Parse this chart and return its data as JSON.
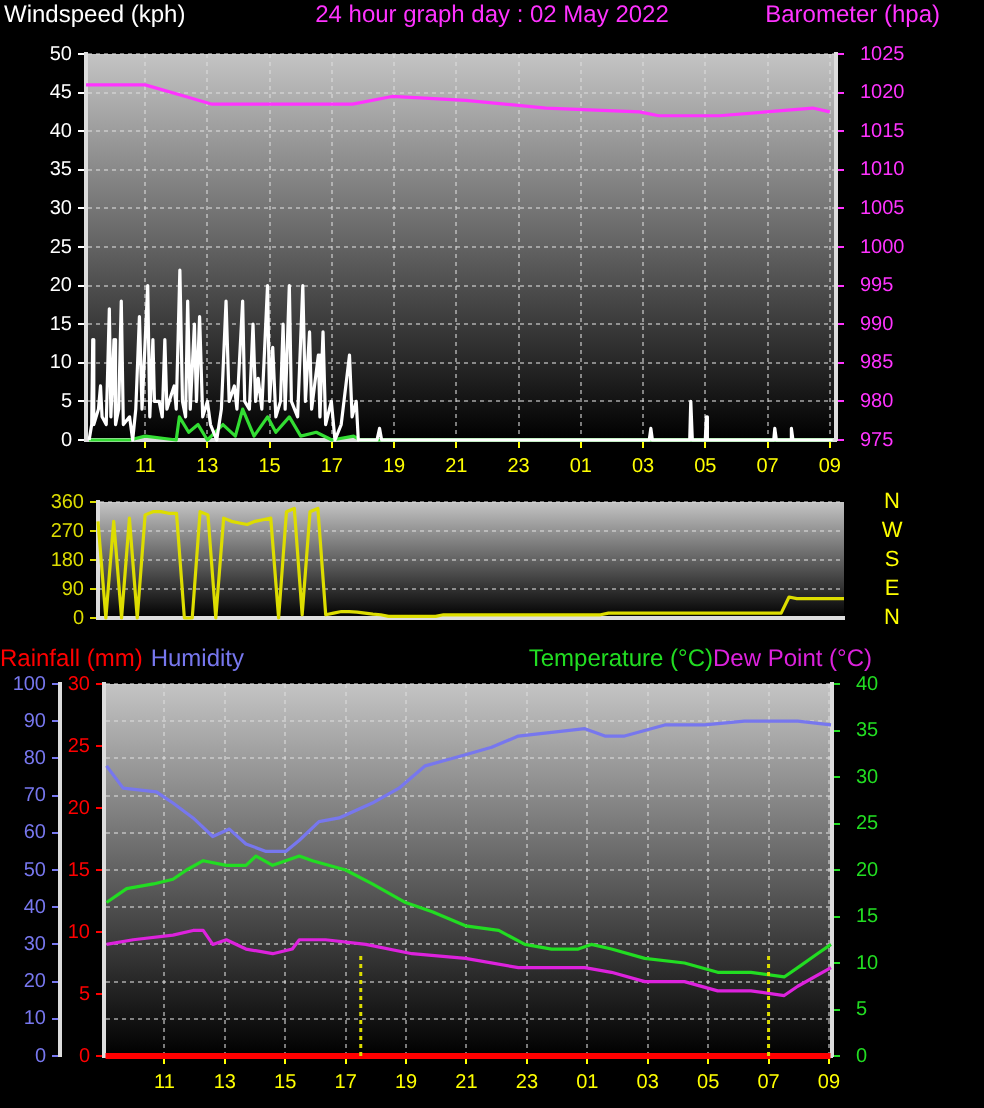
{
  "chart_data": [
    {
      "type": "line",
      "title": "24 hour graph day : 02 May 2022",
      "ylabel": "Windspeed (kph)",
      "y2label": "Barometer (hpa)",
      "xlim": [
        "2022-05-02T09:06",
        "2022-05-03T09:12"
      ],
      "xticks": [
        {
          "value": "2022-05-02T11:00",
          "label": "11"
        },
        {
          "value": "2022-05-02T13:00",
          "label": "13"
        },
        {
          "value": "2022-05-02T15:00",
          "label": "15"
        },
        {
          "value": "2022-05-02T17:00",
          "label": "17"
        },
        {
          "value": "2022-05-02T19:00",
          "label": "19"
        },
        {
          "value": "2022-05-02T21:00",
          "label": "21"
        },
        {
          "value": "2022-05-02T23:00",
          "label": "23"
        },
        {
          "value": "2022-05-03T01:00",
          "label": "01"
        },
        {
          "value": "2022-05-03T03:00",
          "label": "03"
        },
        {
          "value": "2022-05-03T05:00",
          "label": "05"
        },
        {
          "value": "2022-05-03T07:00",
          "label": "07"
        },
        {
          "value": "2022-05-03T09:00",
          "label": "09"
        }
      ],
      "ylim": [
        0,
        50
      ],
      "yticks": [
        0,
        5,
        10,
        15,
        20,
        25,
        30,
        35,
        40,
        45,
        50
      ],
      "y2lim": [
        975,
        1025
      ],
      "y2ticks": [
        975,
        980,
        985,
        990,
        995,
        1000,
        1005,
        1010,
        1015,
        1020,
        1025
      ],
      "grid": true,
      "marker": "none",
      "line_style": "solid",
      "series": [
        {
          "color": "#ffffff",
          "x": [
            "2022-05-02T09:12",
            "2022-05-02T09:17",
            "2022-05-02T09:19",
            "2022-05-02T09:21",
            "2022-05-02T09:30",
            "2022-05-02T09:34",
            "2022-05-02T09:37",
            "2022-05-02T09:45",
            "2022-05-02T09:51",
            "2022-05-02T09:54",
            "2022-05-02T10:00",
            "2022-05-02T10:03",
            "2022-05-02T10:09",
            "2022-05-02T10:14",
            "2022-05-02T10:18",
            "2022-05-02T10:30",
            "2022-05-02T10:36",
            "2022-05-02T10:42",
            "2022-05-02T10:49",
            "2022-05-02T10:54",
            "2022-05-02T11:05",
            "2022-05-02T11:09",
            "2022-05-02T11:15",
            "2022-05-02T11:18",
            "2022-05-02T11:27",
            "2022-05-02T11:33",
            "2022-05-02T11:38",
            "2022-05-02T11:42",
            "2022-05-02T11:51",
            "2022-05-02T11:56",
            "2022-05-02T12:00",
            "2022-05-02T12:07",
            "2022-05-02T12:12",
            "2022-05-02T12:18",
            "2022-05-02T12:22",
            "2022-05-02T12:27",
            "2022-05-02T12:35",
            "2022-05-02T12:39",
            "2022-05-02T12:45",
            "2022-05-02T12:51",
            "2022-05-02T13:00",
            "2022-05-02T13:06",
            "2022-05-02T13:18",
            "2022-05-02T13:27",
            "2022-05-02T13:36",
            "2022-05-02T13:42",
            "2022-05-02T13:52",
            "2022-05-02T13:57",
            "2022-05-02T14:08",
            "2022-05-02T14:12",
            "2022-05-02T14:21",
            "2022-05-02T14:28",
            "2022-05-02T14:33",
            "2022-05-02T14:38",
            "2022-05-02T14:45",
            "2022-05-02T14:56",
            "2022-05-02T15:00",
            "2022-05-02T15:06",
            "2022-05-02T15:12",
            "2022-05-02T15:21",
            "2022-05-02T15:26",
            "2022-05-02T15:30",
            "2022-05-02T15:38",
            "2022-05-02T15:42",
            "2022-05-02T15:54",
            "2022-05-02T16:04",
            "2022-05-02T16:09",
            "2022-05-02T16:17",
            "2022-05-02T16:21",
            "2022-05-02T16:34",
            "2022-05-02T16:37",
            "2022-05-02T16:43",
            "2022-05-02T16:48",
            "2022-05-02T16:59",
            "2022-05-02T17:06",
            "2022-05-02T17:18",
            "2022-05-02T17:34",
            "2022-05-02T17:39",
            "2022-05-02T17:47",
            "2022-05-02T17:51",
            "2022-05-02T18:27",
            "2022-05-02T18:32",
            "2022-05-02T18:36",
            "2022-05-03T03:12",
            "2022-05-03T03:15",
            "2022-05-03T03:18",
            "2022-05-03T04:30",
            "2022-05-03T04:32",
            "2022-05-03T04:35",
            "2022-05-03T05:00",
            "2022-05-03T05:02",
            "2022-05-03T05:04",
            "2022-05-03T07:12",
            "2022-05-03T07:14",
            "2022-05-03T07:17",
            "2022-05-03T07:44",
            "2022-05-03T07:46",
            "2022-05-03T07:49",
            "2022-05-03T09:06"
          ],
          "values": [
            0,
            2,
            13,
            2,
            4,
            7,
            3,
            2,
            17,
            3,
            13,
            2,
            4,
            18,
            2,
            3,
            0,
            4,
            16,
            4,
            20,
            3,
            13,
            5,
            5,
            3,
            13,
            4,
            6,
            7,
            4,
            22,
            5,
            3,
            18,
            4,
            15,
            5,
            16,
            3,
            5,
            2,
            0,
            4,
            18,
            5,
            7,
            4,
            18,
            5,
            4,
            15,
            5,
            8,
            4,
            20,
            5,
            12,
            3,
            5,
            15,
            4,
            20,
            5,
            3,
            20,
            5,
            14,
            4,
            11,
            3,
            14,
            2,
            5,
            0,
            2,
            11,
            3,
            5,
            0,
            0,
            1.5,
            0,
            0,
            1.5,
            0,
            0,
            5,
            0,
            0,
            3,
            0,
            0,
            1.5,
            0,
            0,
            1.5,
            0,
            0
          ]
        },
        {
          "color": "#33dd33",
          "x": [
            "2022-05-02T09:12",
            "2022-05-02T10:30",
            "2022-05-02T11:00",
            "2022-05-02T12:00",
            "2022-05-02T12:06",
            "2022-05-02T12:24",
            "2022-05-02T12:42",
            "2022-05-02T13:00",
            "2022-05-02T13:30",
            "2022-05-02T13:54",
            "2022-05-02T14:08",
            "2022-05-02T14:30",
            "2022-05-02T14:56",
            "2022-05-02T15:12",
            "2022-05-02T15:38",
            "2022-05-02T16:00",
            "2022-05-02T16:30",
            "2022-05-02T17:00",
            "2022-05-02T17:42",
            "2022-05-02T17:54",
            "2022-05-03T09:06"
          ],
          "values": [
            0,
            0,
            0.5,
            0,
            3,
            1,
            2,
            0,
            2,
            0.5,
            4,
            0.5,
            3,
            1,
            3,
            0.5,
            1,
            0,
            0.5,
            0,
            0
          ]
        },
        {
          "color": "#ff33ff",
          "axis": "y2",
          "x": [
            "2022-05-02T09:06",
            "2022-05-02T11:00",
            "2022-05-02T12:18",
            "2022-05-02T13:09",
            "2022-05-02T14:52",
            "2022-05-02T17:40",
            "2022-05-02T18:56",
            "2022-05-02T21:18",
            "2022-05-02T23:53",
            "2022-05-03T02:53",
            "2022-05-03T03:30",
            "2022-05-03T05:27",
            "2022-05-03T06:57",
            "2022-05-03T08:27",
            "2022-05-03T09:00"
          ],
          "values": [
            1021,
            1021,
            1019.5,
            1018.5,
            1018.5,
            1018.5,
            1019.5,
            1019,
            1018,
            1017.5,
            1017,
            1017,
            1017.5,
            1018,
            1017.5
          ]
        }
      ]
    },
    {
      "type": "line",
      "tick_labels": "y",
      "categories": [
        null,
        null,
        null,
        null,
        null,
        null,
        null,
        null,
        null,
        null,
        null,
        null,
        null,
        null,
        null,
        null,
        null,
        null,
        null,
        null,
        null,
        null,
        null,
        null,
        null,
        null,
        null,
        null,
        null,
        null,
        null,
        null,
        null,
        null,
        null,
        null,
        null,
        null,
        null,
        null,
        null,
        null,
        null,
        null,
        null,
        null,
        null,
        null,
        null,
        null,
        null,
        null,
        null,
        null,
        null,
        null,
        null,
        null,
        null,
        null,
        null,
        null,
        null,
        null,
        null,
        null,
        null,
        null,
        null,
        null,
        null,
        null,
        null,
        null,
        null,
        null,
        null,
        null,
        null,
        null,
        null,
        null,
        null,
        null,
        null,
        null,
        null,
        null,
        null,
        null,
        null,
        null,
        null,
        null,
        null,
        null
      ],
      "ylim": [
        0,
        360
      ],
      "yticks": [
        0,
        90,
        180,
        270,
        360
      ],
      "annotations": [
        "N",
        "W",
        "S",
        "E",
        "N"
      ],
      "grid": "y",
      "marker": "none",
      "line_style": "solid",
      "series": [
        {
          "color": "#dddd00",
          "values": [
            300,
            0,
            300,
            0,
            310,
            0,
            320,
            330,
            330,
            325,
            325,
            0,
            0,
            330,
            320,
            0,
            310,
            300,
            295,
            290,
            300,
            305,
            310,
            0,
            330,
            340,
            10,
            330,
            340,
            10,
            15,
            20,
            20,
            18,
            15,
            12,
            10,
            5,
            5,
            5,
            5,
            5,
            5,
            5,
            10,
            10,
            10,
            10,
            10,
            10,
            10,
            10,
            10,
            10,
            10,
            10,
            10,
            10,
            10,
            10,
            10,
            10,
            10,
            10,
            10,
            15,
            15,
            15,
            15,
            15,
            15,
            15,
            15,
            15,
            15,
            15,
            15,
            15,
            15,
            15,
            15,
            15,
            15,
            15,
            15,
            15,
            15,
            15,
            65,
            60,
            60,
            60,
            60,
            60,
            60,
            60
          ]
        }
      ]
    },
    {
      "type": "line",
      "legend": "top",
      "xlim": [
        "2022-05-02T09:00",
        "2022-05-03T09:06"
      ],
      "xticks": [
        {
          "value": "2022-05-02T11:00",
          "label": "11"
        },
        {
          "value": "2022-05-02T13:00",
          "label": "13"
        },
        {
          "value": "2022-05-02T15:00",
          "label": "15"
        },
        {
          "value": "2022-05-02T17:00",
          "label": "17"
        },
        {
          "value": "2022-05-02T19:00",
          "label": "19"
        },
        {
          "value": "2022-05-02T21:00",
          "label": "21"
        },
        {
          "value": "2022-05-02T23:00",
          "label": "23"
        },
        {
          "value": "2022-05-03T01:00",
          "label": "01"
        },
        {
          "value": "2022-05-03T03:00",
          "label": "03"
        },
        {
          "value": "2022-05-03T05:00",
          "label": "05"
        },
        {
          "value": "2022-05-03T07:00",
          "label": "07"
        },
        {
          "value": "2022-05-03T09:00",
          "label": "09"
        }
      ],
      "ylim": [
        0,
        100
      ],
      "yticks": [
        0,
        10,
        20,
        30,
        40,
        50,
        60,
        70,
        80,
        90,
        100
      ],
      "y3lim": [
        0,
        30
      ],
      "y3ticks": [
        0,
        5,
        10,
        15,
        20,
        25,
        30
      ],
      "y2lim": [
        0,
        40
      ],
      "y2ticks": [
        0,
        5,
        10,
        15,
        20,
        25,
        30,
        35,
        40
      ],
      "grid": true,
      "marker": "none",
      "line_style": "solid",
      "ref_lines": [
        {
          "axis": "x",
          "value": "2022-05-02T17:30",
          "color": "#dddd00",
          "line_style": "dotted"
        },
        {
          "axis": "x",
          "value": "2022-05-03T07:00",
          "color": "#dddd00",
          "line_style": "dotted"
        }
      ],
      "series": [
        {
          "name": "Rainfall (mm)",
          "color": "#ff0000",
          "axis": "y3",
          "x": [
            "2022-05-02T09:03",
            "2022-05-03T09:03"
          ],
          "values": [
            0,
            0
          ]
        },
        {
          "name": "Humidity",
          "color": "#7777ee",
          "x": [
            "2022-05-02T09:05",
            "2022-05-02T09:38",
            "2022-05-02T10:44",
            "2022-05-02T11:17",
            "2022-05-02T11:57",
            "2022-05-02T12:36",
            "2022-05-02T13:09",
            "2022-05-02T13:42",
            "2022-05-02T14:22",
            "2022-05-02T15:01",
            "2022-05-02T15:28",
            "2022-05-02T16:07",
            "2022-05-02T16:47",
            "2022-05-02T17:53",
            "2022-05-02T18:46",
            "2022-05-02T19:38",
            "2022-05-02T20:58",
            "2022-05-02T21:50",
            "2022-05-02T22:43",
            "2022-05-02T23:49",
            "2022-05-03T00:55",
            "2022-05-03T01:35",
            "2022-05-03T02:14",
            "2022-05-03T03:34",
            "2022-05-03T04:53",
            "2022-05-03T06:12",
            "2022-05-03T07:58",
            "2022-05-03T09:04"
          ],
          "values": [
            78,
            72,
            71,
            68,
            64,
            59,
            61,
            57,
            55,
            55,
            58,
            63,
            64,
            68,
            72,
            78,
            81,
            83,
            86,
            87,
            88,
            86,
            86,
            89,
            89,
            90,
            90,
            89
          ]
        },
        {
          "name": "Temperature (°C)",
          "color": "#22dd22",
          "axis": "y2",
          "x": [
            "2022-05-02T09:05",
            "2022-05-02T09:45",
            "2022-05-02T10:38",
            "2022-05-02T11:17",
            "2022-05-02T11:44",
            "2022-05-02T12:17",
            "2022-05-02T13:03",
            "2022-05-02T13:42",
            "2022-05-02T14:02",
            "2022-05-02T14:35",
            "2022-05-02T15:28",
            "2022-05-02T15:54",
            "2022-05-02T17:00",
            "2022-05-02T17:53",
            "2022-05-02T18:59",
            "2022-05-02T19:52",
            "2022-05-02T20:58",
            "2022-05-02T22:04",
            "2022-05-02T22:56",
            "2022-05-02T23:49",
            "2022-05-03T00:42",
            "2022-05-03T01:08",
            "2022-05-03T01:48",
            "2022-05-03T02:54",
            "2022-05-03T04:13",
            "2022-05-03T05:19",
            "2022-05-03T06:25",
            "2022-05-03T07:31",
            "2022-05-03T07:58",
            "2022-05-03T08:37",
            "2022-05-03T09:04"
          ],
          "values": [
            16.5,
            18,
            18.5,
            19,
            20,
            21,
            20.5,
            20.5,
            21.5,
            20.5,
            21.5,
            21,
            20,
            18.5,
            16.5,
            15.5,
            14,
            13.5,
            12,
            11.5,
            11.5,
            12,
            11.5,
            10.5,
            10,
            9,
            9,
            8.5,
            9.5,
            11,
            12
          ]
        },
        {
          "name": "Dew Point (°C)",
          "color": "#dd22dd",
          "axis": "y2",
          "x": [
            "2022-05-02T09:05",
            "2022-05-02T09:58",
            "2022-05-02T11:17",
            "2022-05-02T11:57",
            "2022-05-02T12:17",
            "2022-05-02T12:36",
            "2022-05-02T13:03",
            "2022-05-02T13:42",
            "2022-05-02T14:35",
            "2022-05-02T15:14",
            "2022-05-02T15:28",
            "2022-05-02T16:20",
            "2022-05-02T17:40",
            "2022-05-02T19:12",
            "2022-05-02T20:58",
            "2022-05-02T22:43",
            "2022-05-02T23:49",
            "2022-05-03T00:55",
            "2022-05-03T01:48",
            "2022-05-03T02:54",
            "2022-05-03T04:13",
            "2022-05-03T05:19",
            "2022-05-03T06:25",
            "2022-05-03T07:31",
            "2022-05-03T07:58",
            "2022-05-03T09:04"
          ],
          "values": [
            12,
            12.5,
            13,
            13.5,
            13.5,
            12,
            12.5,
            11.5,
            11,
            11.5,
            12.5,
            12.5,
            12,
            11,
            10.5,
            9.5,
            9.5,
            9.5,
            9,
            8,
            8,
            7,
            7,
            6.5,
            7.5,
            9.5
          ]
        }
      ]
    }
  ]
}
